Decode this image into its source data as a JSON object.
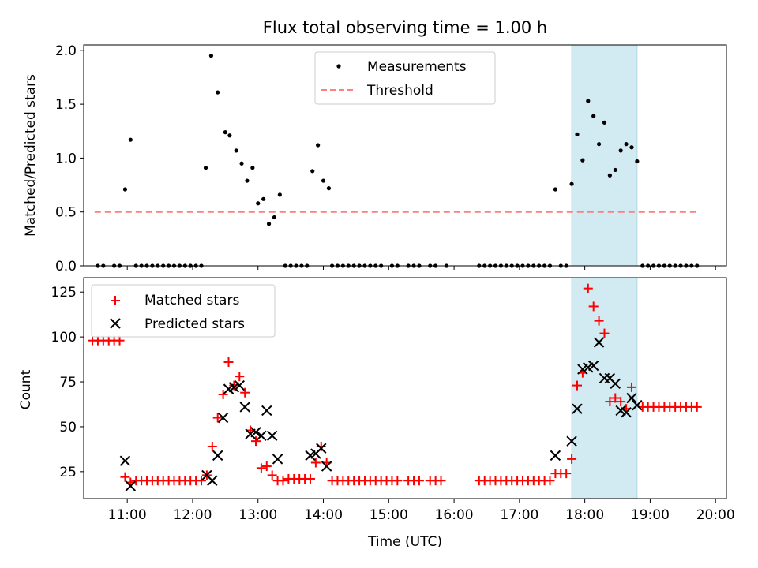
{
  "title": "Flux total observing time = 1.00 h",
  "colors": {
    "highlight": "#add8e6",
    "threshold": "#ff7f7f",
    "matched": "#ff0000",
    "predicted": "#000000"
  },
  "x_ticks": [
    "11:00",
    "12:00",
    "13:00",
    "14:00",
    "15:00",
    "16:00",
    "17:00",
    "18:00",
    "19:00",
    "20:00"
  ],
  "xlabel": "Time (UTC)",
  "chart_data": [
    {
      "type": "scatter",
      "ylabel": "Matched/Predicted stars",
      "ylim": [
        0,
        2.05
      ],
      "y_ticks": [
        "0.0",
        "0.5",
        "1.0",
        "1.5",
        "2.0"
      ],
      "xlim": [
        "10:20",
        "20:10"
      ],
      "highlight_span": [
        "17:48",
        "18:48"
      ],
      "legend_position": "top-center",
      "legend": [
        "Measurements",
        "Threshold"
      ],
      "threshold": {
        "name": "Threshold",
        "value": 0.5,
        "x": [
          "10:30",
          "19:45"
        ]
      },
      "series": [
        {
          "name": "Measurements",
          "points": [
            [
              "10:33",
              0
            ],
            [
              "10:38",
              0
            ],
            [
              "10:48",
              0
            ],
            [
              "10:53",
              0
            ],
            [
              "10:58",
              0.71
            ],
            [
              "11:03",
              1.17
            ],
            [
              "11:08",
              0
            ],
            [
              "11:13",
              0
            ],
            [
              "11:18",
              0
            ],
            [
              "11:23",
              0
            ],
            [
              "11:28",
              0
            ],
            [
              "11:33",
              0
            ],
            [
              "11:38",
              0
            ],
            [
              "11:43",
              0
            ],
            [
              "11:48",
              0
            ],
            [
              "11:53",
              0
            ],
            [
              "11:58",
              0
            ],
            [
              "12:03",
              0
            ],
            [
              "12:08",
              0
            ],
            [
              "12:12",
              0.91
            ],
            [
              "12:17",
              1.95
            ],
            [
              "12:23",
              1.61
            ],
            [
              "12:30",
              1.24
            ],
            [
              "12:34",
              1.21
            ],
            [
              "12:40",
              1.07
            ],
            [
              "12:45",
              0.95
            ],
            [
              "12:50",
              0.79
            ],
            [
              "12:55",
              0.91
            ],
            [
              "13:00",
              0.58
            ],
            [
              "13:05",
              0.62
            ],
            [
              "13:10",
              0.39
            ],
            [
              "13:15",
              0.45
            ],
            [
              "13:20",
              0.66
            ],
            [
              "13:25",
              0
            ],
            [
              "13:30",
              0
            ],
            [
              "13:35",
              0
            ],
            [
              "13:40",
              0
            ],
            [
              "13:45",
              0
            ],
            [
              "13:50",
              0.88
            ],
            [
              "13:55",
              1.12
            ],
            [
              "14:00",
              0.79
            ],
            [
              "14:05",
              0.72
            ],
            [
              "14:08",
              0
            ],
            [
              "14:13",
              0
            ],
            [
              "14:18",
              0
            ],
            [
              "14:23",
              0
            ],
            [
              "14:28",
              0
            ],
            [
              "14:33",
              0
            ],
            [
              "14:38",
              0
            ],
            [
              "14:43",
              0
            ],
            [
              "14:48",
              0
            ],
            [
              "14:53",
              0
            ],
            [
              "15:03",
              0
            ],
            [
              "15:08",
              0
            ],
            [
              "15:18",
              0
            ],
            [
              "15:23",
              0
            ],
            [
              "15:28",
              0
            ],
            [
              "15:38",
              0
            ],
            [
              "15:43",
              0
            ],
            [
              "15:53",
              0
            ],
            [
              "16:23",
              0
            ],
            [
              "16:28",
              0
            ],
            [
              "16:33",
              0
            ],
            [
              "16:38",
              0
            ],
            [
              "16:43",
              0
            ],
            [
              "16:48",
              0
            ],
            [
              "16:53",
              0
            ],
            [
              "16:58",
              0
            ],
            [
              "17:03",
              0
            ],
            [
              "17:08",
              0
            ],
            [
              "17:13",
              0
            ],
            [
              "17:18",
              0
            ],
            [
              "17:23",
              0
            ],
            [
              "17:28",
              0
            ],
            [
              "17:33",
              0.71
            ],
            [
              "17:38",
              0
            ],
            [
              "17:43",
              0
            ],
            [
              "17:48",
              0.76
            ],
            [
              "17:53",
              1.22
            ],
            [
              "17:58",
              0.98
            ],
            [
              "18:03",
              1.53
            ],
            [
              "18:08",
              1.39
            ],
            [
              "18:13",
              1.13
            ],
            [
              "18:18",
              1.33
            ],
            [
              "18:23",
              0.84
            ],
            [
              "18:28",
              0.89
            ],
            [
              "18:33",
              1.07
            ],
            [
              "18:38",
              1.13
            ],
            [
              "18:43",
              1.1
            ],
            [
              "18:48",
              0.97
            ],
            [
              "18:53",
              0
            ],
            [
              "18:58",
              0
            ],
            [
              "19:03",
              0
            ],
            [
              "19:08",
              0
            ],
            [
              "19:13",
              0
            ],
            [
              "19:18",
              0
            ],
            [
              "19:23",
              0
            ],
            [
              "19:28",
              0
            ],
            [
              "19:33",
              0
            ],
            [
              "19:38",
              0
            ],
            [
              "19:43",
              0
            ]
          ]
        }
      ]
    },
    {
      "type": "scatter",
      "ylabel": "Count",
      "ylim": [
        10,
        133
      ],
      "y_ticks": [
        "25",
        "50",
        "75",
        "100",
        "125"
      ],
      "xlim": [
        "10:20",
        "20:10"
      ],
      "highlight_span": [
        "17:48",
        "18:48"
      ],
      "legend_position": "top-left",
      "legend": [
        "Matched stars",
        "Predicted stars"
      ],
      "series": [
        {
          "name": "Matched stars",
          "marker": "plus",
          "points": [
            [
              "10:28",
              98
            ],
            [
              "10:33",
              98
            ],
            [
              "10:38",
              98
            ],
            [
              "10:43",
              98
            ],
            [
              "10:48",
              98
            ],
            [
              "10:53",
              98
            ],
            [
              "10:58",
              22
            ],
            [
              "11:03",
              19
            ],
            [
              "11:08",
              20
            ],
            [
              "11:13",
              20
            ],
            [
              "11:18",
              20
            ],
            [
              "11:23",
              20
            ],
            [
              "11:28",
              20
            ],
            [
              "11:33",
              20
            ],
            [
              "11:38",
              20
            ],
            [
              "11:43",
              20
            ],
            [
              "11:48",
              20
            ],
            [
              "11:53",
              20
            ],
            [
              "11:58",
              20
            ],
            [
              "12:03",
              20
            ],
            [
              "12:08",
              20
            ],
            [
              "12:13",
              23
            ],
            [
              "12:18",
              39
            ],
            [
              "12:23",
              55
            ],
            [
              "12:28",
              68
            ],
            [
              "12:33",
              86
            ],
            [
              "12:38",
              73
            ],
            [
              "12:43",
              78
            ],
            [
              "12:48",
              69
            ],
            [
              "12:53",
              48
            ],
            [
              "12:58",
              42
            ],
            [
              "13:03",
              27
            ],
            [
              "13:08",
              28
            ],
            [
              "13:13",
              23
            ],
            [
              "13:18",
              20
            ],
            [
              "13:23",
              20
            ],
            [
              "13:28",
              21
            ],
            [
              "13:33",
              21
            ],
            [
              "13:38",
              21
            ],
            [
              "13:43",
              21
            ],
            [
              "13:48",
              21
            ],
            [
              "13:53",
              30
            ],
            [
              "13:58",
              39
            ],
            [
              "14:03",
              30
            ],
            [
              "14:08",
              20
            ],
            [
              "14:13",
              20
            ],
            [
              "14:18",
              20
            ],
            [
              "14:23",
              20
            ],
            [
              "14:28",
              20
            ],
            [
              "14:33",
              20
            ],
            [
              "14:38",
              20
            ],
            [
              "14:43",
              20
            ],
            [
              "14:48",
              20
            ],
            [
              "14:53",
              20
            ],
            [
              "14:58",
              20
            ],
            [
              "15:03",
              20
            ],
            [
              "15:08",
              20
            ],
            [
              "15:18",
              20
            ],
            [
              "15:23",
              20
            ],
            [
              "15:28",
              20
            ],
            [
              "15:38",
              20
            ],
            [
              "15:43",
              20
            ],
            [
              "15:48",
              20
            ],
            [
              "16:23",
              20
            ],
            [
              "16:28",
              20
            ],
            [
              "16:33",
              20
            ],
            [
              "16:38",
              20
            ],
            [
              "16:43",
              20
            ],
            [
              "16:48",
              20
            ],
            [
              "16:53",
              20
            ],
            [
              "16:58",
              20
            ],
            [
              "17:03",
              20
            ],
            [
              "17:08",
              20
            ],
            [
              "17:13",
              20
            ],
            [
              "17:18",
              20
            ],
            [
              "17:23",
              20
            ],
            [
              "17:28",
              20
            ],
            [
              "17:33",
              24
            ],
            [
              "17:38",
              24
            ],
            [
              "17:43",
              24
            ],
            [
              "17:48",
              32
            ],
            [
              "17:53",
              73
            ],
            [
              "17:58",
              80
            ],
            [
              "18:03",
              127
            ],
            [
              "18:08",
              117
            ],
            [
              "18:13",
              109
            ],
            [
              "18:18",
              102
            ],
            [
              "18:23",
              64
            ],
            [
              "18:28",
              66
            ],
            [
              "18:33",
              64
            ],
            [
              "18:38",
              60
            ],
            [
              "18:43",
              72
            ],
            [
              "18:53",
              61
            ],
            [
              "18:58",
              61
            ],
            [
              "19:03",
              61
            ],
            [
              "19:08",
              61
            ],
            [
              "19:13",
              61
            ],
            [
              "19:18",
              61
            ],
            [
              "19:23",
              61
            ],
            [
              "19:28",
              61
            ],
            [
              "19:33",
              61
            ],
            [
              "19:38",
              61
            ],
            [
              "19:43",
              61
            ]
          ]
        },
        {
          "name": "Predicted stars",
          "marker": "cross",
          "points": [
            [
              "10:58",
              31
            ],
            [
              "11:03",
              17
            ],
            [
              "12:13",
              23
            ],
            [
              "12:18",
              20
            ],
            [
              "12:23",
              34
            ],
            [
              "12:28",
              55
            ],
            [
              "12:33",
              71
            ],
            [
              "12:38",
              72
            ],
            [
              "12:43",
              73
            ],
            [
              "12:48",
              61
            ],
            [
              "12:53",
              46
            ],
            [
              "12:58",
              47
            ],
            [
              "13:03",
              45
            ],
            [
              "13:08",
              59
            ],
            [
              "13:13",
              45
            ],
            [
              "13:18",
              32
            ],
            [
              "13:48",
              34
            ],
            [
              "13:53",
              35
            ],
            [
              "13:58",
              38
            ],
            [
              "14:03",
              28
            ],
            [
              "17:33",
              34
            ],
            [
              "17:48",
              42
            ],
            [
              "17:53",
              60
            ],
            [
              "17:58",
              82
            ],
            [
              "18:03",
              83
            ],
            [
              "18:08",
              84
            ],
            [
              "18:13",
              97
            ],
            [
              "18:18",
              77
            ],
            [
              "18:23",
              77
            ],
            [
              "18:28",
              74
            ],
            [
              "18:33",
              59
            ],
            [
              "18:38",
              58
            ],
            [
              "18:43",
              66
            ],
            [
              "18:48",
              62
            ]
          ]
        }
      ]
    }
  ]
}
